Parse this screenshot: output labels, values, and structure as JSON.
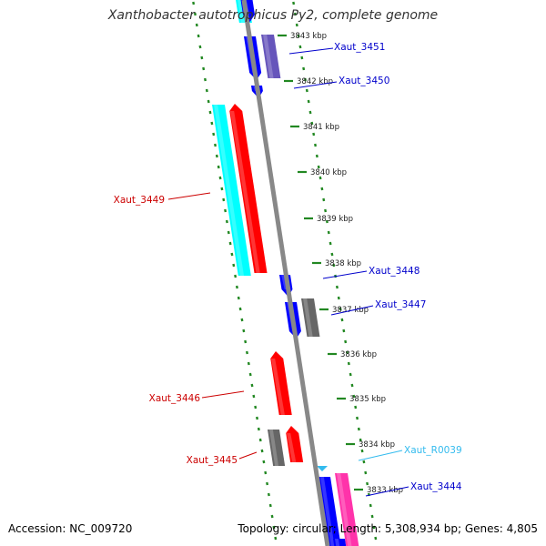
{
  "title": "Xanthobacter autotrophicus Py2, complete genome",
  "accession_text": "Accession: NC_009720",
  "summary_text": "Topology: circular; Length: 5,308,934 bp; Genes: 4,805",
  "ruler_labels": [
    "3843 kbp",
    "3842 kbp",
    "3841 kbp",
    "3840 kbp",
    "3839 kbp",
    "3838 kbp",
    "3837 kbp",
    "3836 kbp",
    "3835 kbp",
    "3834 kbp",
    "3833 kbp"
  ],
  "genes": [
    {
      "label": "Xaut_3451",
      "color": "#0000cc"
    },
    {
      "label": "Xaut_3450",
      "color": "#0000cc"
    },
    {
      "label": "Xaut_3449",
      "color": "#cc0000"
    },
    {
      "label": "Xaut_3448",
      "color": "#0000cc"
    },
    {
      "label": "Xaut_3447",
      "color": "#0000cc"
    },
    {
      "label": "Xaut_3446",
      "color": "#cc0000"
    },
    {
      "label": "Xaut_3445",
      "color": "#cc0000"
    },
    {
      "label": "Xaut_R0039",
      "color": "#33bbee"
    },
    {
      "label": "Xaut_3444",
      "color": "#0000cc"
    }
  ],
  "feature_colors": {
    "cds_forward": "#ff0000",
    "cds_reverse": "#0000ff",
    "cds_other": "#666666",
    "purple": "#6655bb",
    "cyan": "#00ffff",
    "magenta": "#ff33aa",
    "rna": "#33bbee",
    "backbone": "#888888",
    "dots": "#228822"
  }
}
